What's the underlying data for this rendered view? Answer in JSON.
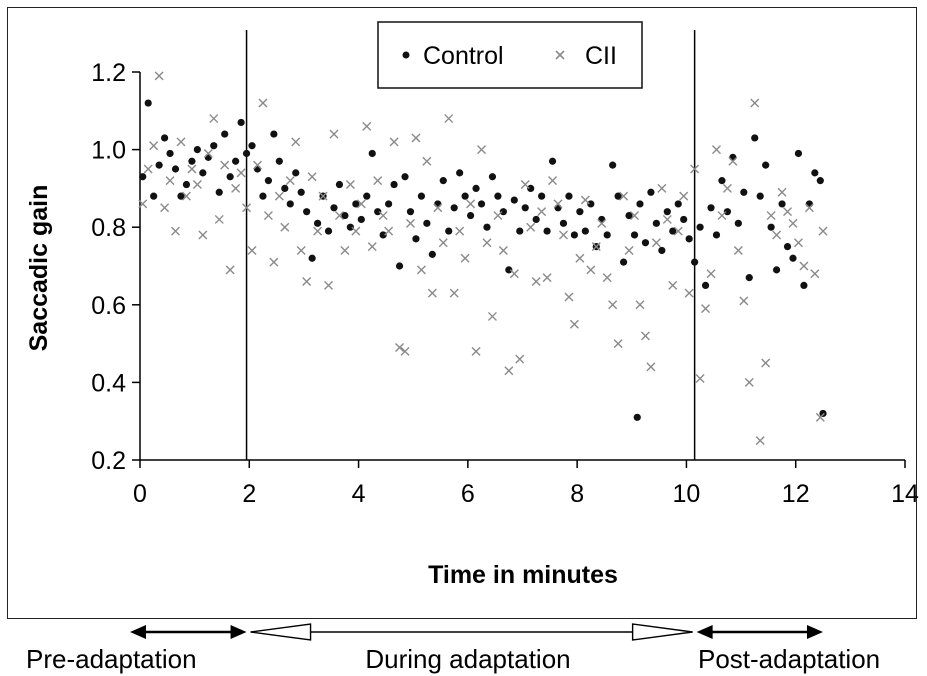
{
  "chart_data": {
    "type": "scatter",
    "xlabel": "Time in minutes",
    "ylabel": "Saccadic gain",
    "xlim": [
      0,
      14
    ],
    "ylim": [
      0.2,
      1.2
    ],
    "x_ticks": [
      "0",
      "2",
      "4",
      "6",
      "8",
      "10",
      "12",
      "14"
    ],
    "y_ticks": [
      "0.2",
      "0.4",
      "0.6",
      "0.8",
      "1.0",
      "1.2"
    ],
    "grid": false,
    "legend_position": "top-center",
    "vertical_markers": [
      1.95,
      10.15
    ],
    "series": [
      {
        "name": "Control",
        "marker": "dot",
        "color": "#111111",
        "points": [
          [
            0.05,
            0.93
          ],
          [
            0.15,
            1.12
          ],
          [
            0.25,
            0.88
          ],
          [
            0.35,
            0.96
          ],
          [
            0.45,
            1.03
          ],
          [
            0.55,
            0.99
          ],
          [
            0.65,
            0.95
          ],
          [
            0.75,
            0.88
          ],
          [
            0.85,
            0.91
          ],
          [
            0.95,
            0.97
          ],
          [
            1.05,
            1.0
          ],
          [
            1.15,
            0.94
          ],
          [
            1.25,
            0.98
          ],
          [
            1.35,
            1.01
          ],
          [
            1.45,
            0.89
          ],
          [
            1.55,
            1.04
          ],
          [
            1.65,
            0.93
          ],
          [
            1.75,
            0.97
          ],
          [
            1.85,
            1.07
          ],
          [
            1.95,
            0.99
          ],
          [
            2.05,
            1.01
          ],
          [
            2.15,
            0.95
          ],
          [
            2.25,
            0.88
          ],
          [
            2.35,
            0.92
          ],
          [
            2.45,
            1.04
          ],
          [
            2.55,
            0.97
          ],
          [
            2.65,
            0.9
          ],
          [
            2.75,
            0.86
          ],
          [
            2.85,
            0.94
          ],
          [
            2.95,
            0.89
          ],
          [
            3.05,
            0.84
          ],
          [
            3.15,
            0.72
          ],
          [
            3.25,
            0.81
          ],
          [
            3.35,
            0.88
          ],
          [
            3.45,
            0.79
          ],
          [
            3.55,
            0.85
          ],
          [
            3.65,
            0.91
          ],
          [
            3.75,
            0.83
          ],
          [
            3.85,
            0.8
          ],
          [
            3.95,
            0.86
          ],
          [
            4.05,
            0.82
          ],
          [
            4.15,
            0.88
          ],
          [
            4.25,
            0.99
          ],
          [
            4.35,
            0.84
          ],
          [
            4.45,
            0.78
          ],
          [
            4.55,
            0.86
          ],
          [
            4.65,
            0.91
          ],
          [
            4.75,
            0.7
          ],
          [
            4.85,
            0.93
          ],
          [
            4.95,
            0.84
          ],
          [
            5.05,
            0.77
          ],
          [
            5.15,
            0.88
          ],
          [
            5.25,
            0.81
          ],
          [
            5.35,
            0.73
          ],
          [
            5.45,
            0.86
          ],
          [
            5.55,
            0.92
          ],
          [
            5.65,
            0.79
          ],
          [
            5.75,
            0.85
          ],
          [
            5.85,
            0.94
          ],
          [
            5.95,
            0.88
          ],
          [
            6.05,
            0.83
          ],
          [
            6.15,
            0.9
          ],
          [
            6.25,
            0.86
          ],
          [
            6.35,
            0.8
          ],
          [
            6.45,
            0.93
          ],
          [
            6.55,
            0.88
          ],
          [
            6.65,
            0.84
          ],
          [
            6.75,
            0.69
          ],
          [
            6.85,
            0.87
          ],
          [
            6.95,
            0.79
          ],
          [
            7.05,
            0.85
          ],
          [
            7.15,
            0.9
          ],
          [
            7.25,
            0.82
          ],
          [
            7.35,
            0.88
          ],
          [
            7.45,
            0.79
          ],
          [
            7.55,
            0.97
          ],
          [
            7.65,
            0.85
          ],
          [
            7.75,
            0.81
          ],
          [
            7.85,
            0.88
          ],
          [
            7.95,
            0.78
          ],
          [
            8.05,
            0.84
          ],
          [
            8.15,
            0.79
          ],
          [
            8.25,
            0.86
          ],
          [
            8.35,
            0.75
          ],
          [
            8.45,
            0.82
          ],
          [
            8.55,
            0.78
          ],
          [
            8.65,
            0.96
          ],
          [
            8.75,
            0.88
          ],
          [
            8.85,
            0.71
          ],
          [
            8.95,
            0.83
          ],
          [
            9.05,
            0.78
          ],
          [
            9.1,
            0.31
          ],
          [
            9.15,
            0.86
          ],
          [
            9.25,
            0.76
          ],
          [
            9.35,
            0.89
          ],
          [
            9.45,
            0.81
          ],
          [
            9.55,
            0.74
          ],
          [
            9.65,
            0.84
          ],
          [
            9.75,
            0.79
          ],
          [
            9.85,
            0.86
          ],
          [
            9.95,
            0.82
          ],
          [
            10.05,
            0.77
          ],
          [
            10.15,
            0.71
          ],
          [
            10.25,
            0.8
          ],
          [
            10.35,
            0.65
          ],
          [
            10.45,
            0.85
          ],
          [
            10.55,
            0.78
          ],
          [
            10.65,
            0.92
          ],
          [
            10.75,
            0.84
          ],
          [
            10.85,
            0.98
          ],
          [
            10.95,
            0.81
          ],
          [
            11.05,
            0.89
          ],
          [
            11.15,
            0.67
          ],
          [
            11.25,
            1.03
          ],
          [
            11.35,
            0.88
          ],
          [
            11.45,
            0.96
          ],
          [
            11.55,
            0.8
          ],
          [
            11.65,
            0.69
          ],
          [
            11.75,
            0.86
          ],
          [
            11.85,
            0.75
          ],
          [
            11.95,
            0.72
          ],
          [
            12.05,
            0.99
          ],
          [
            12.15,
            0.65
          ],
          [
            12.25,
            0.86
          ],
          [
            12.35,
            0.94
          ],
          [
            12.45,
            0.92
          ],
          [
            12.5,
            0.32
          ]
        ]
      },
      {
        "name": "CII",
        "marker": "cross",
        "color": "#8a8a8a",
        "points": [
          [
            0.05,
            0.86
          ],
          [
            0.15,
            0.95
          ],
          [
            0.25,
            1.01
          ],
          [
            0.35,
            1.19
          ],
          [
            0.45,
            0.85
          ],
          [
            0.55,
            0.92
          ],
          [
            0.65,
            0.79
          ],
          [
            0.75,
            1.02
          ],
          [
            0.85,
            0.88
          ],
          [
            0.95,
            0.95
          ],
          [
            1.05,
            0.91
          ],
          [
            1.15,
            0.78
          ],
          [
            1.25,
            0.99
          ],
          [
            1.35,
            1.08
          ],
          [
            1.45,
            0.82
          ],
          [
            1.55,
            0.96
          ],
          [
            1.65,
            0.69
          ],
          [
            1.75,
            0.9
          ],
          [
            1.85,
            0.94
          ],
          [
            1.95,
            0.85
          ],
          [
            2.05,
            0.74
          ],
          [
            2.15,
            0.96
          ],
          [
            2.25,
            1.12
          ],
          [
            2.35,
            0.83
          ],
          [
            2.45,
            0.71
          ],
          [
            2.55,
            0.88
          ],
          [
            2.65,
            0.8
          ],
          [
            2.75,
            0.92
          ],
          [
            2.85,
            1.02
          ],
          [
            2.95,
            0.74
          ],
          [
            3.05,
            0.66
          ],
          [
            3.15,
            0.93
          ],
          [
            3.25,
            0.79
          ],
          [
            3.35,
            0.88
          ],
          [
            3.45,
            0.65
          ],
          [
            3.55,
            1.04
          ],
          [
            3.65,
            0.83
          ],
          [
            3.75,
            0.74
          ],
          [
            3.85,
            0.91
          ],
          [
            3.95,
            0.79
          ],
          [
            4.05,
            0.86
          ],
          [
            4.15,
            1.06
          ],
          [
            4.25,
            0.75
          ],
          [
            4.35,
            0.92
          ],
          [
            4.45,
            0.83
          ],
          [
            4.55,
            0.79
          ],
          [
            4.65,
            1.02
          ],
          [
            4.75,
            0.49
          ],
          [
            4.85,
            0.48
          ],
          [
            4.95,
            0.81
          ],
          [
            5.05,
            1.03
          ],
          [
            5.15,
            0.69
          ],
          [
            5.25,
            0.97
          ],
          [
            5.35,
            0.63
          ],
          [
            5.45,
            0.85
          ],
          [
            5.55,
            0.76
          ],
          [
            5.65,
            1.08
          ],
          [
            5.75,
            0.63
          ],
          [
            5.85,
            0.79
          ],
          [
            5.95,
            0.72
          ],
          [
            6.05,
            0.86
          ],
          [
            6.15,
            0.48
          ],
          [
            6.25,
            1.0
          ],
          [
            6.35,
            0.76
          ],
          [
            6.45,
            0.57
          ],
          [
            6.55,
            0.83
          ],
          [
            6.65,
            0.74
          ],
          [
            6.75,
            0.43
          ],
          [
            6.85,
            0.68
          ],
          [
            6.95,
            0.46
          ],
          [
            7.05,
            0.91
          ],
          [
            7.15,
            0.8
          ],
          [
            7.25,
            0.66
          ],
          [
            7.35,
            0.84
          ],
          [
            7.45,
            0.67
          ],
          [
            7.55,
            0.92
          ],
          [
            7.65,
            0.86
          ],
          [
            7.75,
            0.78
          ],
          [
            7.85,
            0.62
          ],
          [
            7.95,
            0.55
          ],
          [
            8.05,
            0.72
          ],
          [
            8.15,
            0.87
          ],
          [
            8.25,
            0.69
          ],
          [
            8.35,
            0.75
          ],
          [
            8.45,
            0.81
          ],
          [
            8.55,
            0.67
          ],
          [
            8.65,
            0.6
          ],
          [
            8.75,
            0.5
          ],
          [
            8.85,
            0.88
          ],
          [
            8.95,
            0.74
          ],
          [
            9.05,
            0.83
          ],
          [
            9.15,
            0.6
          ],
          [
            9.25,
            0.52
          ],
          [
            9.35,
            0.44
          ],
          [
            9.45,
            0.76
          ],
          [
            9.55,
            0.9
          ],
          [
            9.65,
            0.82
          ],
          [
            9.75,
            0.65
          ],
          [
            9.85,
            0.79
          ],
          [
            9.95,
            0.88
          ],
          [
            10.05,
            0.63
          ],
          [
            10.15,
            0.95
          ],
          [
            10.25,
            0.41
          ],
          [
            10.35,
            0.59
          ],
          [
            10.45,
            0.68
          ],
          [
            10.55,
            1.0
          ],
          [
            10.65,
            0.83
          ],
          [
            10.75,
            0.9
          ],
          [
            10.85,
            0.97
          ],
          [
            10.95,
            0.74
          ],
          [
            11.05,
            0.61
          ],
          [
            11.15,
            0.4
          ],
          [
            11.25,
            1.12
          ],
          [
            11.35,
            0.25
          ],
          [
            11.45,
            0.45
          ],
          [
            11.55,
            0.83
          ],
          [
            11.65,
            0.78
          ],
          [
            11.75,
            0.89
          ],
          [
            11.85,
            0.84
          ],
          [
            11.95,
            0.81
          ],
          [
            12.05,
            0.76
          ],
          [
            12.15,
            0.7
          ],
          [
            12.25,
            0.85
          ],
          [
            12.35,
            0.68
          ],
          [
            12.45,
            0.31
          ],
          [
            12.5,
            0.79
          ]
        ]
      }
    ],
    "phases": [
      {
        "label": "Pre-adaptation",
        "arrow": "filled-both"
      },
      {
        "label": "During adaptation",
        "arrow": "open-both"
      },
      {
        "label": "Post-adaptation",
        "arrow": "filled-both"
      }
    ]
  }
}
